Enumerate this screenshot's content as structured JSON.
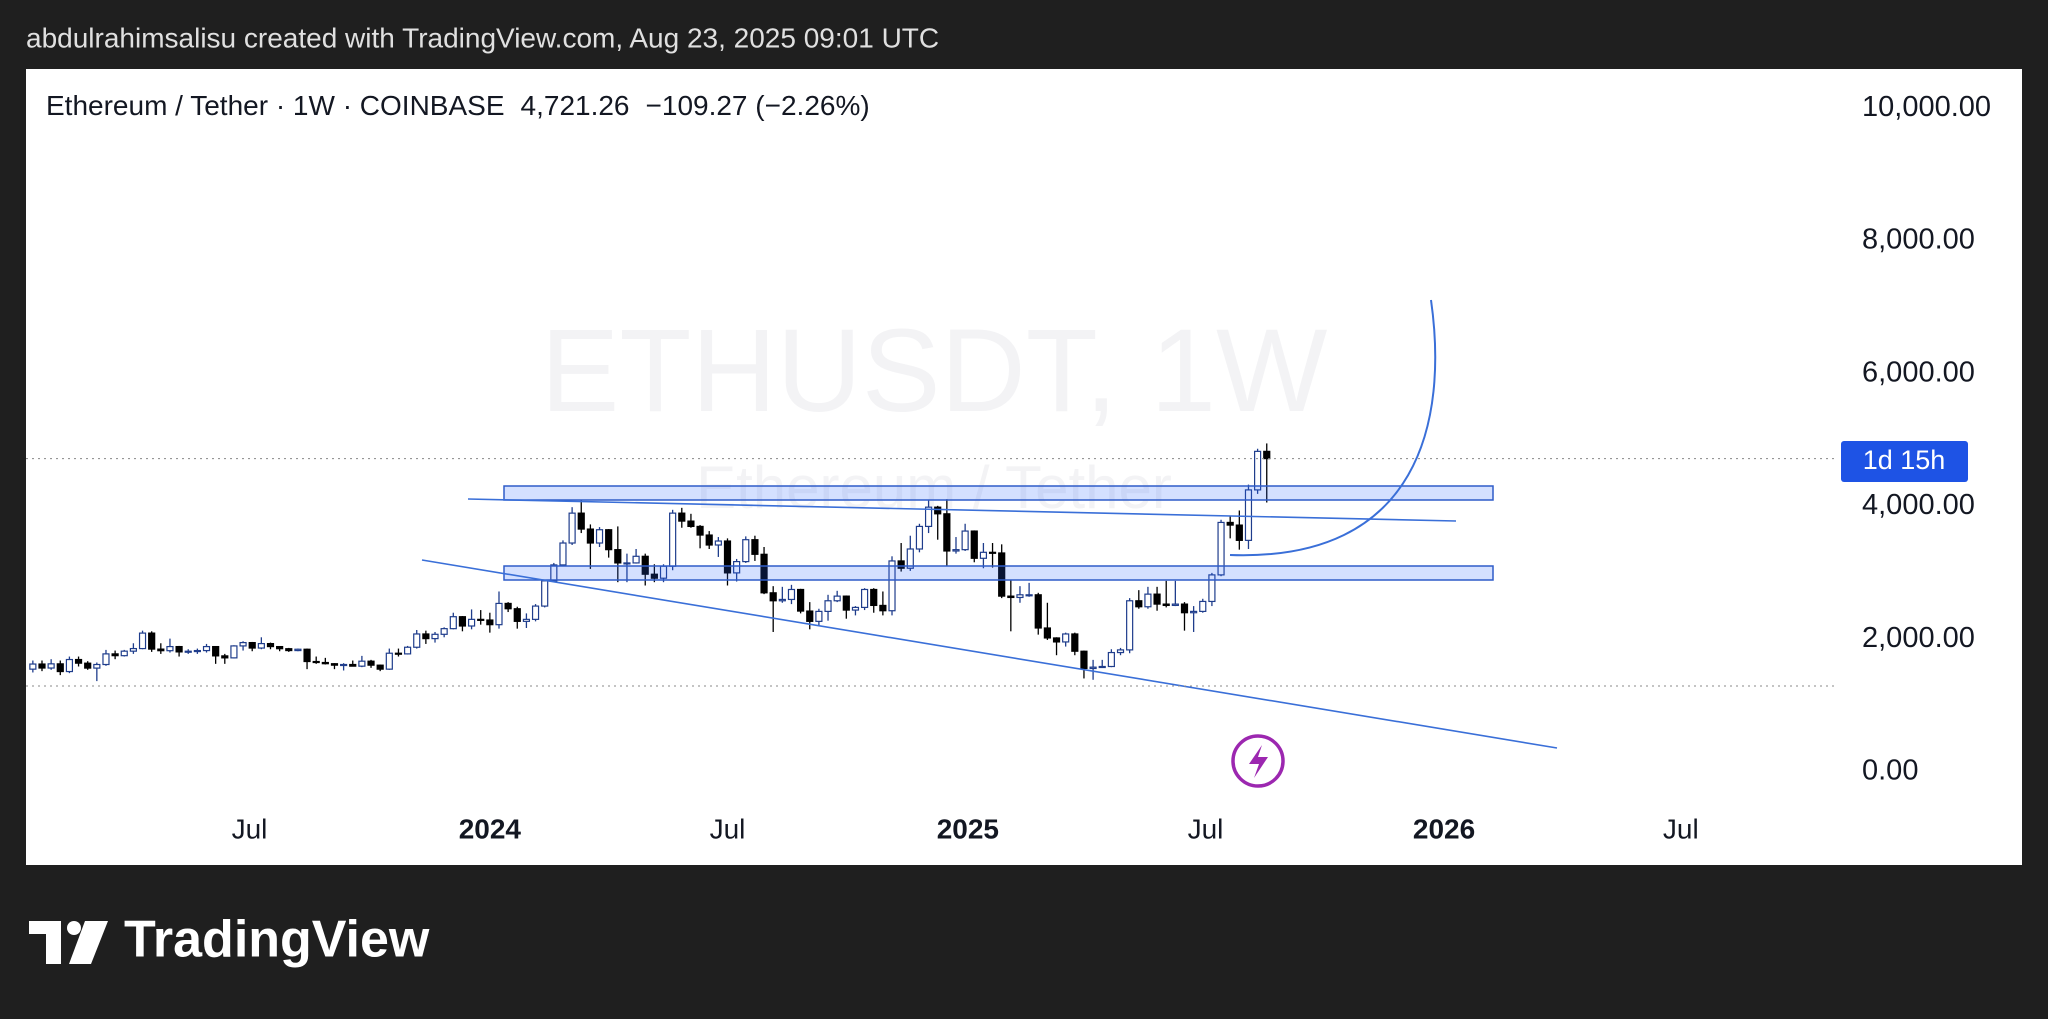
{
  "caption": "abdulrahimsalisu created with TradingView.com, Aug 23, 2025 09:01 UTC",
  "brand": "TradingView",
  "chart_data": {
    "type": "candlestick",
    "title": "Ethereum / Tether · 1W · COINBASE",
    "price_label": "4,721.26",
    "change_label": "−109.27 (−2.26%)",
    "watermark": "ETHUSDT, 1W",
    "watermark_subtitle": "Ethereum / Tether",
    "countdown": "1d 15h",
    "up_color": "#ffffff",
    "up_border": "#1f3d8c",
    "down_color": "#000000",
    "open": [
      1550,
      1627,
      1567,
      1630,
      1514,
      1695,
      1640,
      1566,
      1620,
      1780,
      1753,
      1821,
      1860,
      2093,
      1852,
      1828,
      1890,
      1810,
      1820,
      1830,
      1890,
      1750,
      1720,
      1900,
      1950,
      1868,
      1935,
      1890,
      1858,
      1830,
      1850,
      1665,
      1650,
      1632,
      1610,
      1620,
      1595,
      1670,
      1610,
      1550,
      1790,
      1780,
      1880,
      2080,
      2010,
      2075,
      2160,
      2340,
      2200,
      2300,
      2290,
      2220,
      2540,
      2460,
      2270,
      2300,
      2500,
      2880,
      3120,
      3450,
      3900,
      3660,
      3450,
      3650,
      3350,
      3150,
      3150,
      3250,
      2980,
      2920,
      3100,
      3900,
      3780,
      3700,
      3570,
      3420,
      3480,
      3000,
      3170,
      3500,
      3280,
      2700,
      2580,
      2600,
      2750,
      2425,
      2270,
      2420,
      2580,
      2650,
      2440,
      2480,
      2750,
      2510,
      2430,
      3180,
      3070,
      3360,
      3700,
      3990,
      3890,
      3330,
      3350,
      3630,
      3220,
      3310,
      3300,
      2650,
      2630,
      2670,
      2670,
      2170,
      2020,
      1960,
      2080,
      1820,
      1560,
      1580,
      1590,
      1800,
      1840,
      2580,
      2490,
      2680,
      2530,
      2510,
      2530,
      2400,
      2420,
      2570,
      2970,
      3760,
      3720,
      3490,
      4250,
      4830.53
    ],
    "high": [
      1680,
      1680,
      1700,
      1680,
      1740,
      1740,
      1670,
      1650,
      1840,
      1830,
      1840,
      1940,
      2130,
      2120,
      1940,
      2010,
      1900,
      1850,
      1860,
      1930,
      1890,
      1780,
      1910,
      1970,
      1960,
      2030,
      1950,
      1890,
      1870,
      1860,
      1860,
      1740,
      1720,
      1640,
      1640,
      1680,
      1750,
      1690,
      1620,
      1860,
      1860,
      1900,
      2140,
      2130,
      2110,
      2180,
      2400,
      2350,
      2450,
      2440,
      2400,
      2720,
      2560,
      2490,
      2390,
      2530,
      2880,
      3150,
      3490,
      3990,
      4090,
      3730,
      3690,
      3660,
      3700,
      3290,
      3360,
      3290,
      3130,
      3130,
      3950,
      3980,
      3890,
      3720,
      3630,
      3540,
      3520,
      3210,
      3550,
      3560,
      3390,
      2800,
      2790,
      2820,
      2760,
      2560,
      2460,
      2670,
      2730,
      2660,
      2500,
      2770,
      2770,
      2720,
      3250,
      3450,
      3560,
      3740,
      4090,
      4010,
      4110,
      3540,
      3740,
      3640,
      3450,
      3450,
      3430,
      2900,
      2800,
      2850,
      2700,
      2550,
      2030,
      2100,
      2100,
      1830,
      1690,
      1690,
      1850,
      1870,
      2620,
      2740,
      2790,
      2790,
      2880,
      2880,
      2560,
      2500,
      2610,
      3000,
      3800,
      3860,
      3940,
      4330,
      4870,
      4950
    ],
    "low": [
      1500,
      1520,
      1540,
      1460,
      1490,
      1590,
      1540,
      1370,
      1600,
      1700,
      1740,
      1780,
      1850,
      1810,
      1780,
      1800,
      1740,
      1780,
      1780,
      1800,
      1630,
      1630,
      1710,
      1830,
      1820,
      1850,
      1850,
      1820,
      1810,
      1820,
      1550,
      1630,
      1620,
      1550,
      1530,
      1590,
      1580,
      1570,
      1520,
      1540,
      1740,
      1770,
      1860,
      1930,
      1950,
      2030,
      2150,
      2120,
      2150,
      2220,
      2100,
      2160,
      2410,
      2160,
      2170,
      2270,
      2480,
      2860,
      3120,
      3420,
      3600,
      3060,
      3390,
      3230,
      2860,
      2860,
      3140,
      2810,
      2860,
      2860,
      3040,
      3680,
      3680,
      3370,
      3360,
      3240,
      2810,
      2870,
      3150,
      3180,
      2680,
      2110,
      2550,
      2530,
      2390,
      2150,
      2210,
      2280,
      2560,
      2310,
      2360,
      2440,
      2400,
      2360,
      2360,
      3020,
      3030,
      3310,
      3600,
      3500,
      3100,
      3290,
      3330,
      3160,
      3070,
      3080,
      2620,
      2120,
      2550,
      2640,
      2070,
      1990,
      1760,
      1890,
      1760,
      1410,
      1390,
      1570,
      1580,
      1760,
      1790,
      2460,
      2460,
      2430,
      2480,
      2500,
      2130,
      2110,
      2400,
      2500,
      2950,
      3520,
      3350,
      3360,
      4190,
      4060
    ],
    "close": [
      1627,
      1567,
      1630,
      1514,
      1695,
      1640,
      1566,
      1620,
      1780,
      1753,
      1821,
      1860,
      2093,
      1852,
      1828,
      1890,
      1810,
      1820,
      1830,
      1890,
      1750,
      1720,
      1900,
      1950,
      1868,
      1935,
      1890,
      1858,
      1830,
      1850,
      1665,
      1650,
      1632,
      1610,
      1620,
      1595,
      1670,
      1610,
      1550,
      1790,
      1780,
      1880,
      2080,
      2010,
      2075,
      2160,
      2340,
      2200,
      2300,
      2290,
      2220,
      2540,
      2460,
      2270,
      2300,
      2500,
      2880,
      3120,
      3450,
      3900,
      3660,
      3450,
      3650,
      3350,
      3150,
      3150,
      3250,
      2980,
      2920,
      3100,
      3900,
      3780,
      3700,
      3570,
      3420,
      3480,
      3000,
      3170,
      3500,
      3280,
      2700,
      2580,
      2600,
      2750,
      2425,
      2270,
      2420,
      2580,
      2650,
      2440,
      2480,
      2750,
      2510,
      2430,
      3180,
      3070,
      3360,
      3700,
      3990,
      3890,
      3330,
      3350,
      3630,
      3220,
      3310,
      3300,
      2650,
      2630,
      2670,
      2670,
      2170,
      2020,
      1960,
      2080,
      1820,
      1560,
      1580,
      1590,
      1800,
      1840,
      2580,
      2490,
      2680,
      2530,
      2510,
      2530,
      2400,
      2420,
      2570,
      2970,
      3760,
      3720,
      3490,
      4250,
      4830.53,
      4721.26
    ],
    "xlim": [
      -0.75,
      197.5
    ],
    "xticks": [
      {
        "value": 23.7,
        "label": "Jul"
      },
      {
        "value": 50,
        "label": "2024"
      },
      {
        "value": 76,
        "label": "Jul"
      },
      {
        "value": 102.3,
        "label": "2025"
      },
      {
        "value": 128.3,
        "label": "Jul"
      },
      {
        "value": 154.4,
        "label": "2026"
      },
      {
        "value": 180.3,
        "label": "Jul"
      }
    ],
    "ylim": [
      -1400,
      10590
    ],
    "yticks": [
      {
        "value": 0,
        "label": "0.00"
      },
      {
        "value": 2000,
        "label": "2,000.00"
      },
      {
        "value": 4000,
        "label": "4,000.00"
      },
      {
        "value": 6000,
        "label": "6,000.00"
      },
      {
        "value": 8000,
        "label": "8,000.00"
      },
      {
        "value": 10000,
        "label": "10,000.00"
      }
    ]
  }
}
